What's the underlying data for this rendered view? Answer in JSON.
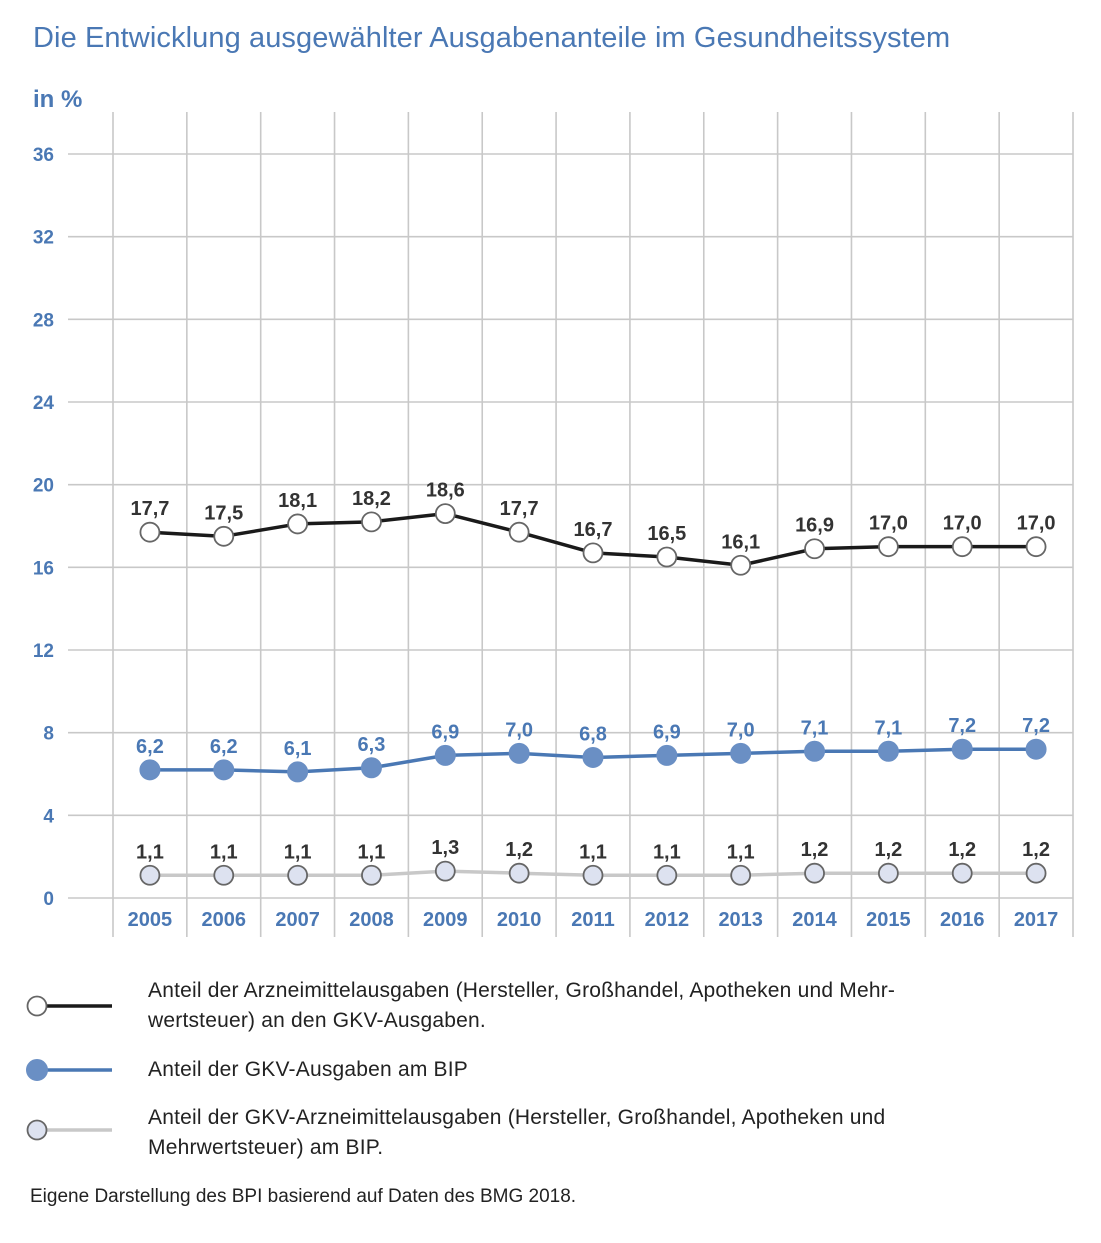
{
  "title": "Die Entwicklung ausgewählter Ausgabenanteile im Gesundheitssystem",
  "unit_label": "in %",
  "source": "Eigene Darstellung des BPI basierend auf Daten des BMG 2018.",
  "colors": {
    "accent": "#4a78b4",
    "series_black": "#1a1a1a",
    "series_blue": "#4a78b4",
    "series_blue_marker": "#6a8fc4",
    "series_gray": "#c8c8c8",
    "series_gray_marker": "#dde2f0",
    "grid": "#c8c8c8"
  },
  "chart_data": {
    "type": "line",
    "title": "Die Entwicklung ausgewählter Ausgabenanteile im Gesundheitssystem",
    "xlabel": "",
    "ylabel": "in %",
    "ylim": [
      0,
      36
    ],
    "yticks": [
      0,
      4,
      8,
      12,
      16,
      20,
      24,
      28,
      32,
      36
    ],
    "ytick_labels": [
      "0",
      "4",
      "8",
      "12",
      "16",
      "20",
      "24",
      "28",
      "32",
      "36"
    ],
    "grid": true,
    "legend_position": "bottom",
    "categories": [
      "2005",
      "2006",
      "2007",
      "2008",
      "2009",
      "2010",
      "2011",
      "2012",
      "2013",
      "2014",
      "2015",
      "2016",
      "2017"
    ],
    "series": [
      {
        "name": "Anteil der Arzneimittelausgaben (Hersteller, Großhandel, Apotheken und Mehrwertsteuer) an den GKV-Ausgaben.",
        "key": "black",
        "values": [
          17.7,
          17.5,
          18.1,
          18.2,
          18.6,
          17.7,
          16.7,
          16.5,
          16.1,
          16.9,
          17.0,
          17.0,
          17.0
        ],
        "labels": [
          "17,7",
          "17,5",
          "18,1",
          "18,2",
          "18,6",
          "17,7",
          "16,7",
          "16,5",
          "16,1",
          "16,9",
          "17,0",
          "17,0",
          "17,0"
        ]
      },
      {
        "name": "Anteil der GKV-Ausgaben am BIP",
        "key": "blue",
        "values": [
          6.2,
          6.2,
          6.1,
          6.3,
          6.9,
          7.0,
          6.8,
          6.9,
          7.0,
          7.1,
          7.1,
          7.2,
          7.2
        ],
        "labels": [
          "6,2",
          "6,2",
          "6,1",
          "6,3",
          "6,9",
          "7,0",
          "6,8",
          "6,9",
          "7,0",
          "7,1",
          "7,1",
          "7,2",
          "7,2"
        ]
      },
      {
        "name": "Anteil der GKV-Arzneimittelausgaben (Hersteller, Großhandel, Apotheken und Mehrwertsteuer) am BIP.",
        "key": "gray",
        "values": [
          1.1,
          1.1,
          1.1,
          1.1,
          1.3,
          1.2,
          1.1,
          1.1,
          1.1,
          1.2,
          1.2,
          1.2,
          1.2
        ],
        "labels": [
          "1,1",
          "1,1",
          "1,1",
          "1,1",
          "1,3",
          "1,2",
          "1,1",
          "1,1",
          "1,1",
          "1,2",
          "1,2",
          "1,2",
          "1,2"
        ]
      }
    ]
  },
  "legend": [
    {
      "line1": "Anteil der Arzneimittelausgaben (Hersteller, Großhandel, Apotheken und Mehr-",
      "line2": "wertsteuer) an den GKV-Ausgaben."
    },
    {
      "line1": "Anteil der GKV-Ausgaben am BIP",
      "line2": ""
    },
    {
      "line1": "Anteil der GKV-Arzneimittelausgaben (Hersteller, Großhandel, Apotheken und",
      "line2": "Mehrwertsteuer) am BIP."
    }
  ]
}
